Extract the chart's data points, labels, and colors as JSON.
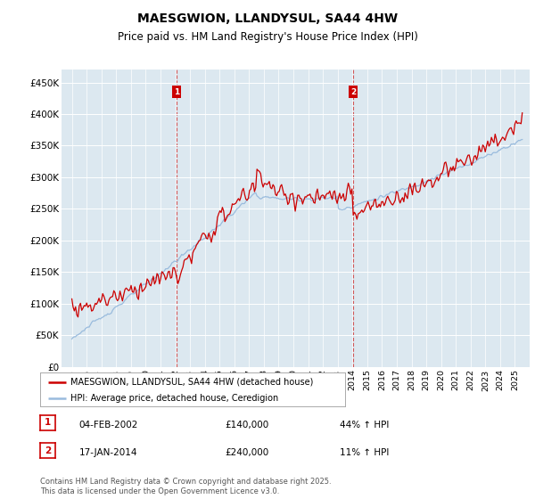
{
  "title": "MAESGWION, LLANDYSUL, SA44 4HW",
  "subtitle": "Price paid vs. HM Land Registry's House Price Index (HPI)",
  "ylim": [
    0,
    470000
  ],
  "yticks": [
    0,
    50000,
    100000,
    150000,
    200000,
    250000,
    300000,
    350000,
    400000,
    450000
  ],
  "ytick_labels": [
    "£0",
    "£50K",
    "£100K",
    "£150K",
    "£200K",
    "£250K",
    "£300K",
    "£350K",
    "£400K",
    "£450K"
  ],
  "red_color": "#cc0000",
  "blue_color": "#99bbdd",
  "legend_red": "MAESGWION, LLANDYSUL, SA44 4HW (detached house)",
  "legend_blue": "HPI: Average price, detached house, Ceredigion",
  "footer": "Contains HM Land Registry data © Crown copyright and database right 2025.\nThis data is licensed under the Open Government Licence v3.0.",
  "background_color": "#dce8f0",
  "date1": 2002.09,
  "date2": 2014.05,
  "marker1_price": 140000,
  "marker2_price": 240000,
  "xstart": 1995,
  "xend": 2025.5
}
